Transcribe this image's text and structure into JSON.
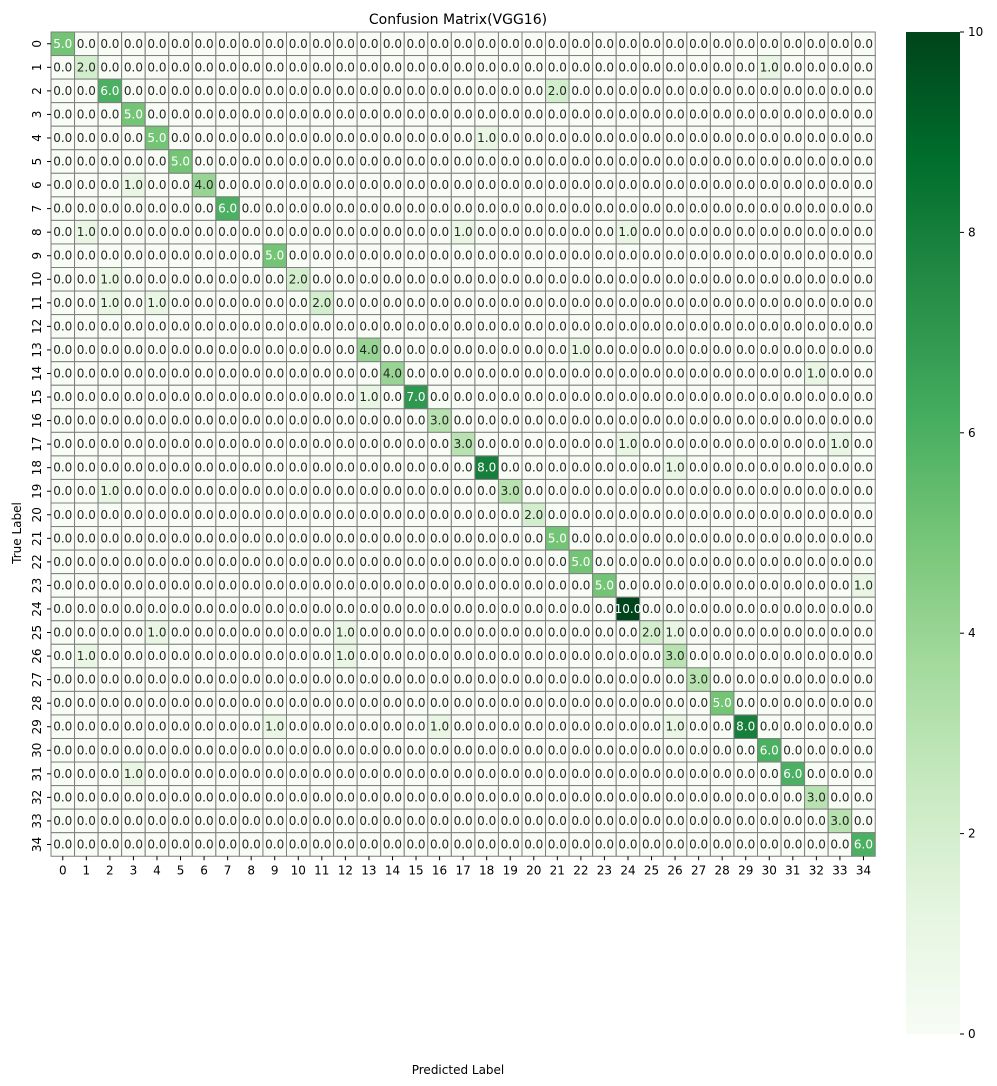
{
  "chart_data": {
    "type": "heatmap",
    "title": "Confusion Matrix(VGG16)",
    "xlabel": "Predicted Label",
    "ylabel": "True Label",
    "x_ticks": [
      "0",
      "1",
      "2",
      "3",
      "4",
      "5",
      "6",
      "7",
      "8",
      "9",
      "10",
      "11",
      "12",
      "13",
      "14",
      "15",
      "16",
      "17",
      "18",
      "19",
      "20",
      "21",
      "22",
      "23",
      "24",
      "25",
      "26",
      "27",
      "28",
      "29",
      "30",
      "31",
      "32",
      "33",
      "34"
    ],
    "y_ticks": [
      "0",
      "1",
      "2",
      "3",
      "4",
      "5",
      "6",
      "7",
      "8",
      "9",
      "10",
      "11",
      "12",
      "13",
      "14",
      "15",
      "16",
      "17",
      "18",
      "19",
      "20",
      "21",
      "22",
      "23",
      "24",
      "25",
      "26",
      "27",
      "28",
      "29",
      "30",
      "31",
      "32",
      "33",
      "34"
    ],
    "colormap": "Greens",
    "value_range": [
      0,
      10
    ],
    "colorbar_ticks": [
      "0",
      "2",
      "4",
      "6",
      "8",
      "10"
    ],
    "cell_label_format": "one decimal",
    "diagonal": [
      5,
      2,
      6,
      5,
      5,
      5,
      4,
      6,
      0,
      5,
      2,
      2,
      0,
      4,
      4,
      7,
      3,
      3,
      8,
      3,
      2,
      5,
      5,
      5,
      10,
      2,
      3,
      3,
      5,
      8,
      6,
      6,
      3,
      3,
      6
    ],
    "off_diagonal": [
      {
        "row": 1,
        "col": 30,
        "value": 1
      },
      {
        "row": 2,
        "col": 21,
        "value": 2
      },
      {
        "row": 4,
        "col": 18,
        "value": 1
      },
      {
        "row": 6,
        "col": 3,
        "value": 1
      },
      {
        "row": 8,
        "col": 1,
        "value": 1
      },
      {
        "row": 8,
        "col": 17,
        "value": 1
      },
      {
        "row": 8,
        "col": 24,
        "value": 1
      },
      {
        "row": 10,
        "col": 2,
        "value": 1
      },
      {
        "row": 11,
        "col": 2,
        "value": 1
      },
      {
        "row": 11,
        "col": 4,
        "value": 1
      },
      {
        "row": 13,
        "col": 22,
        "value": 1
      },
      {
        "row": 14,
        "col": 32,
        "value": 1
      },
      {
        "row": 15,
        "col": 13,
        "value": 1
      },
      {
        "row": 17,
        "col": 24,
        "value": 1
      },
      {
        "row": 17,
        "col": 33,
        "value": 1
      },
      {
        "row": 18,
        "col": 26,
        "value": 1
      },
      {
        "row": 19,
        "col": 2,
        "value": 1
      },
      {
        "row": 23,
        "col": 34,
        "value": 1
      },
      {
        "row": 25,
        "col": 4,
        "value": 1
      },
      {
        "row": 25,
        "col": 12,
        "value": 1
      },
      {
        "row": 25,
        "col": 26,
        "value": 1
      },
      {
        "row": 26,
        "col": 1,
        "value": 1
      },
      {
        "row": 26,
        "col": 12,
        "value": 1
      },
      {
        "row": 29,
        "col": 9,
        "value": 1
      },
      {
        "row": 29,
        "col": 16,
        "value": 1
      },
      {
        "row": 29,
        "col": 26,
        "value": 1
      },
      {
        "row": 31,
        "col": 3,
        "value": 1
      }
    ]
  }
}
